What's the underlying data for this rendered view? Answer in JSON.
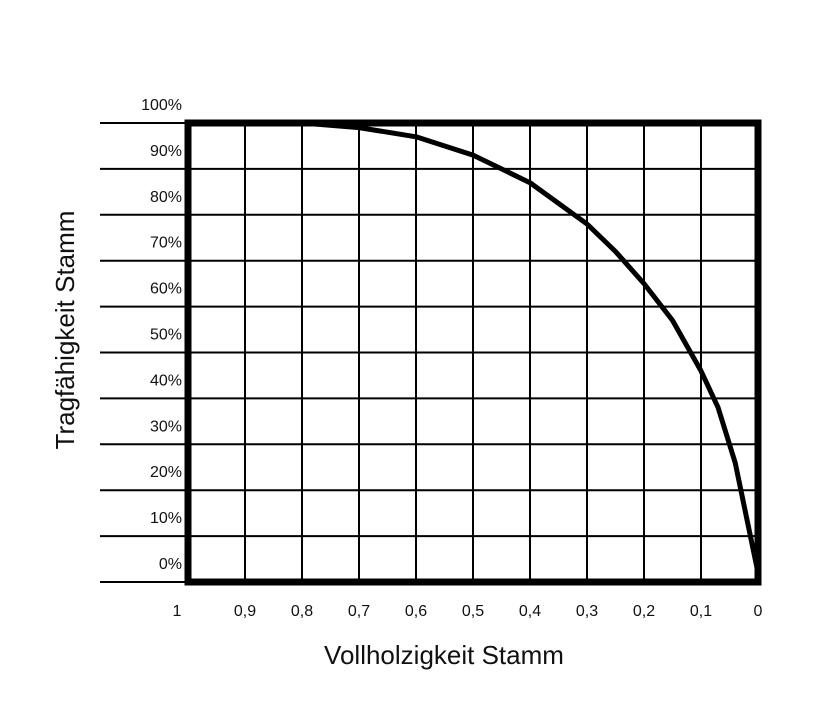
{
  "chart_data": {
    "type": "line",
    "xlabel": "Vollholzigkeit Stamm",
    "ylabel": "Tragfähigkeit Stamm",
    "x_ticks": [
      "1",
      "0,9",
      "0,8",
      "0,7",
      "0,6",
      "0,5",
      "0,4",
      "0,3",
      "0,2",
      "0,1",
      "0"
    ],
    "y_ticks": [
      "0%",
      "10%",
      "20%",
      "30%",
      "40%",
      "50%",
      "60%",
      "70%",
      "80%",
      "90%",
      "100%"
    ],
    "xlim": [
      1,
      0
    ],
    "ylim": [
      0,
      100
    ],
    "x_reversed": true,
    "grid": true,
    "series": [
      {
        "x": [
          1.0,
          0.9,
          0.8,
          0.7,
          0.6,
          0.5,
          0.4,
          0.3,
          0.25,
          0.2,
          0.15,
          0.1,
          0.07,
          0.04,
          0.02,
          0.0
        ],
        "y": [
          100,
          100,
          100,
          99,
          97,
          93,
          87,
          78,
          72,
          65,
          57,
          46,
          38,
          26,
          14,
          2
        ]
      }
    ],
    "colors": {
      "line": "#000000",
      "grid": "#000000",
      "background": "#ffffff"
    }
  }
}
